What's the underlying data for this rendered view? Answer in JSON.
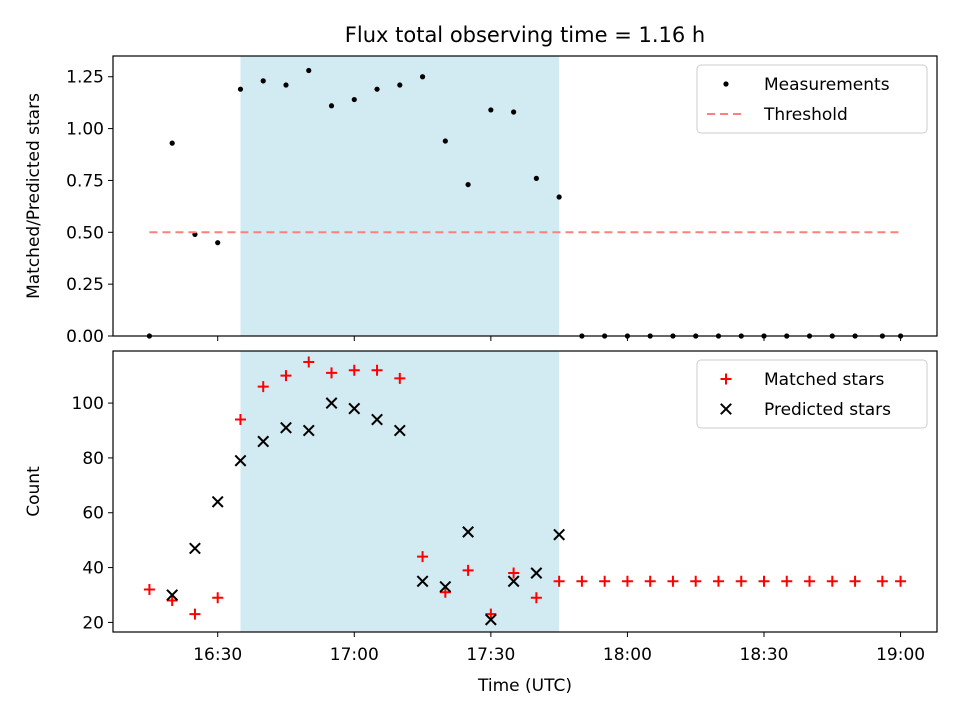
{
  "chart_data": [
    {
      "type": "scatter",
      "title": "Flux total observing time = 1.16 h",
      "ylabel": "Matched/Predicted stars",
      "xlim": [
        "16:07",
        "19:08"
      ],
      "ylim": [
        0,
        1.35
      ],
      "yticks": [
        "0.00",
        "0.25",
        "0.50",
        "0.75",
        "1.00",
        "1.25"
      ],
      "shaded_span": [
        "16:35",
        "17:45"
      ],
      "legend_position": "upper right",
      "series": [
        {
          "name": "Measurements",
          "marker": "dot",
          "color": "#000000",
          "points": [
            [
              "16:15",
              0.0
            ],
            [
              "16:20",
              0.93
            ],
            [
              "16:25",
              0.49
            ],
            [
              "16:30",
              0.45
            ],
            [
              "16:35",
              1.19
            ],
            [
              "16:40",
              1.23
            ],
            [
              "16:45",
              1.21
            ],
            [
              "16:50",
              1.28
            ],
            [
              "16:55",
              1.11
            ],
            [
              "17:00",
              1.14
            ],
            [
              "17:05",
              1.19
            ],
            [
              "17:10",
              1.21
            ],
            [
              "17:15",
              1.25
            ],
            [
              "17:20",
              0.94
            ],
            [
              "17:25",
              0.73
            ],
            [
              "17:30",
              1.09
            ],
            [
              "17:35",
              1.08
            ],
            [
              "17:40",
              0.76
            ],
            [
              "17:45",
              0.67
            ],
            [
              "17:50",
              0.0
            ],
            [
              "17:55",
              0.0
            ],
            [
              "18:00",
              0.0
            ],
            [
              "18:05",
              0.0
            ],
            [
              "18:10",
              0.0
            ],
            [
              "18:15",
              0.0
            ],
            [
              "18:20",
              0.0
            ],
            [
              "18:25",
              0.0
            ],
            [
              "18:30",
              0.0
            ],
            [
              "18:35",
              0.0
            ],
            [
              "18:40",
              0.0
            ],
            [
              "18:45",
              0.0
            ],
            [
              "18:50",
              0.0
            ],
            [
              "18:56",
              0.0
            ],
            [
              "19:00",
              0.0
            ]
          ]
        },
        {
          "name": "Threshold",
          "marker": "dashed-line",
          "color": "#ff7f7f",
          "points": [
            [
              "16:15",
              0.5
            ],
            [
              "19:00",
              0.5
            ]
          ]
        }
      ]
    },
    {
      "type": "scatter",
      "xlabel": "Time (UTC)",
      "ylabel": "Count",
      "xlim": [
        "16:07",
        "19:08"
      ],
      "ylim": [
        16.5,
        119
      ],
      "yticks": [
        "20",
        "40",
        "60",
        "80",
        "100"
      ],
      "xticks": [
        "16:30",
        "17:00",
        "17:30",
        "18:00",
        "18:30",
        "19:00"
      ],
      "shaded_span": [
        "16:35",
        "17:45"
      ],
      "legend_position": "upper right",
      "series": [
        {
          "name": "Matched stars",
          "marker": "plus",
          "color": "#ff0000",
          "points": [
            [
              "16:15",
              32
            ],
            [
              "16:20",
              28
            ],
            [
              "16:25",
              23
            ],
            [
              "16:30",
              29
            ],
            [
              "16:35",
              94
            ],
            [
              "16:40",
              106
            ],
            [
              "16:45",
              110
            ],
            [
              "16:50",
              115
            ],
            [
              "16:55",
              111
            ],
            [
              "17:00",
              112
            ],
            [
              "17:05",
              112
            ],
            [
              "17:10",
              109
            ],
            [
              "17:15",
              44
            ],
            [
              "17:20",
              31
            ],
            [
              "17:25",
              39
            ],
            [
              "17:30",
              23
            ],
            [
              "17:35",
              38
            ],
            [
              "17:40",
              29
            ],
            [
              "17:45",
              35
            ],
            [
              "17:50",
              35
            ],
            [
              "17:55",
              35
            ],
            [
              "18:00",
              35
            ],
            [
              "18:05",
              35
            ],
            [
              "18:10",
              35
            ],
            [
              "18:15",
              35
            ],
            [
              "18:20",
              35
            ],
            [
              "18:25",
              35
            ],
            [
              "18:30",
              35
            ],
            [
              "18:35",
              35
            ],
            [
              "18:40",
              35
            ],
            [
              "18:45",
              35
            ],
            [
              "18:50",
              35
            ],
            [
              "18:56",
              35
            ],
            [
              "19:00",
              35
            ]
          ]
        },
        {
          "name": "Predicted stars",
          "marker": "x",
          "color": "#000000",
          "points": [
            [
              "16:20",
              30
            ],
            [
              "16:25",
              47
            ],
            [
              "16:30",
              64
            ],
            [
              "16:35",
              79
            ],
            [
              "16:40",
              86
            ],
            [
              "16:45",
              91
            ],
            [
              "16:50",
              90
            ],
            [
              "16:55",
              100
            ],
            [
              "17:00",
              98
            ],
            [
              "17:05",
              94
            ],
            [
              "17:10",
              90
            ],
            [
              "17:15",
              35
            ],
            [
              "17:20",
              33
            ],
            [
              "17:25",
              53
            ],
            [
              "17:30",
              21
            ],
            [
              "17:35",
              35
            ],
            [
              "17:40",
              38
            ],
            [
              "17:45",
              52
            ]
          ]
        }
      ]
    }
  ],
  "colors": {
    "shade": "#add8e6",
    "axes": "#000000"
  }
}
